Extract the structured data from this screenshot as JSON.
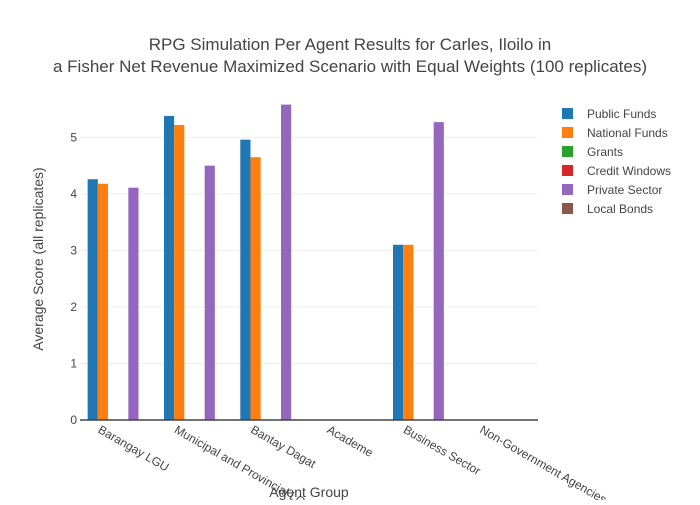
{
  "chart_data": {
    "type": "bar",
    "title_lines": [
      "RPG Simulation Per Agent Results for Carles, Iloilo in",
      "a Fisher Net Revenue Maximized Scenario with Equal Weights (100 replicates)"
    ],
    "xlabel": "Agent Group",
    "ylabel": "Average Score (all replicates)",
    "ylim": [
      0,
      5.75
    ],
    "yticks": [
      0,
      1,
      2,
      3,
      4,
      5
    ],
    "grid": true,
    "legend_position": "top-right",
    "categories": [
      "Barangay LGU",
      "Municipal and Provincial LGU",
      "Bantay Dagat",
      "Academe",
      "Business Sector",
      "Non-Government Agencies"
    ],
    "series": [
      {
        "name": "Public Funds",
        "color": "#1f77b4",
        "values": [
          4.26,
          5.38,
          4.96,
          null,
          3.1,
          null
        ]
      },
      {
        "name": "National Funds",
        "color": "#ff7f0e",
        "values": [
          4.18,
          5.22,
          4.65,
          null,
          3.1,
          null
        ]
      },
      {
        "name": "Grants",
        "color": "#2ca02c",
        "values": [
          null,
          null,
          null,
          null,
          null,
          null
        ]
      },
      {
        "name": "Credit Windows",
        "color": "#d62728",
        "values": [
          null,
          null,
          null,
          null,
          null,
          null
        ]
      },
      {
        "name": "Private Sector",
        "color": "#9467bd",
        "values": [
          4.11,
          4.5,
          5.58,
          null,
          5.27,
          null
        ]
      },
      {
        "name": "Local Bonds",
        "color": "#8c564b",
        "values": [
          null,
          null,
          null,
          null,
          null,
          null
        ]
      }
    ]
  }
}
